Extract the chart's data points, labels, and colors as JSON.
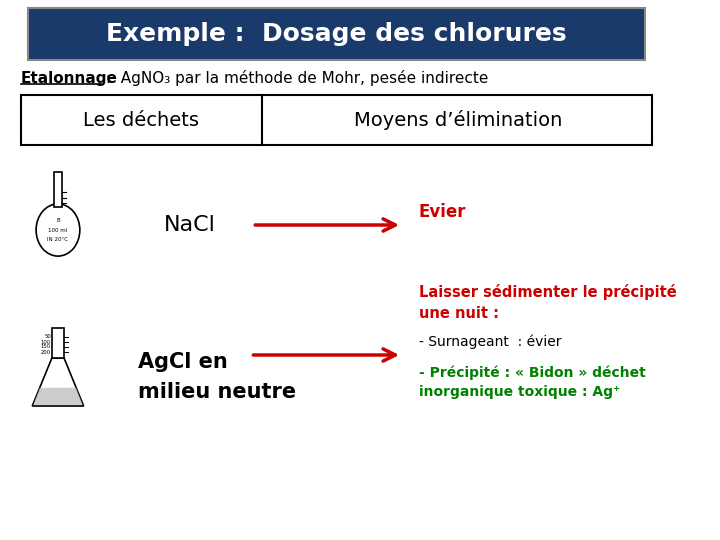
{
  "background_color": "#ffffff",
  "title_box_color": "#1a3a6b",
  "title_text": "Exemple :  Dosage des chlorures",
  "title_text_color": "#ffffff",
  "subtitle_bold": "Etalonnage",
  "subtitle_rest": " :  AgNO₃ par la méthode de Mohr, pesée indirecte",
  "col1_header": "Les déchets",
  "col2_header": "Moyens d’élimination",
  "nacl_label": "NaCl",
  "nacl_arrow_label": "Evier",
  "agcl_label": "AgCl en\nmilieu neutre",
  "agcl_note_red": "Laisser sédimenter le précipité\nune nuit :",
  "agcl_note_black1": "- Surnageant  : évier",
  "agcl_note_green": "- Précipité : « Bidon » déchet\ninorganique toxique : Ag⁺",
  "red_color": "#cc0000",
  "green_color": "#008000",
  "black_color": "#000000",
  "white_color": "#ffffff"
}
